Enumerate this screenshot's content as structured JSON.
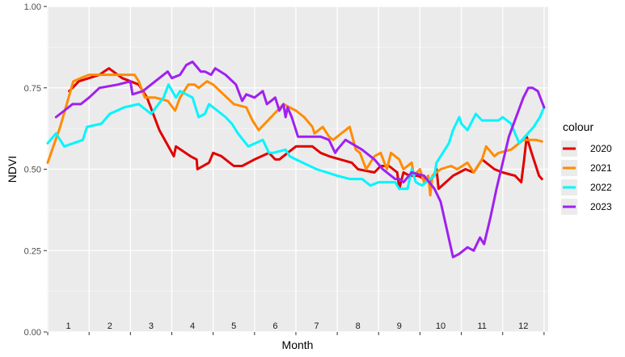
{
  "chart_data": {
    "type": "line",
    "title": "",
    "xlabel": "Month",
    "ylabel": "NDVI",
    "ylim": [
      0,
      1
    ],
    "yticks": [
      "0.00",
      "0.25",
      "0.50",
      "0.75",
      "1.00"
    ],
    "ytick_values": [
      0,
      0.25,
      0.5,
      0.75,
      1
    ],
    "month_labels": [
      "1",
      "2",
      "3",
      "4",
      "5",
      "6",
      "7",
      "8",
      "9",
      "10",
      "11",
      "12"
    ],
    "month_positions": [
      1.5,
      2.5,
      3.5,
      4.5,
      5.5,
      6.5,
      7.5,
      8.5,
      9.5,
      10.5,
      11.5,
      12.5
    ],
    "xlim": [
      0.98,
      13.1
    ],
    "grid": true,
    "legend_title": "colour",
    "legend_position": "right",
    "series": [
      {
        "name": "2020",
        "color": "#e00000",
        "points": [
          [
            1.52,
            0.74
          ],
          [
            1.6,
            0.75
          ],
          [
            1.75,
            0.77
          ],
          [
            2.0,
            0.78
          ],
          [
            2.25,
            0.79
          ],
          [
            2.48,
            0.81
          ],
          [
            2.8,
            0.78
          ],
          [
            3.2,
            0.76
          ],
          [
            3.4,
            0.72
          ],
          [
            3.7,
            0.62
          ],
          [
            4.05,
            0.54
          ],
          [
            4.1,
            0.57
          ],
          [
            4.45,
            0.54
          ],
          [
            4.6,
            0.53
          ],
          [
            4.62,
            0.5
          ],
          [
            4.9,
            0.52
          ],
          [
            5.0,
            0.55
          ],
          [
            5.2,
            0.54
          ],
          [
            5.5,
            0.51
          ],
          [
            5.7,
            0.51
          ],
          [
            6.0,
            0.53
          ],
          [
            6.35,
            0.55
          ],
          [
            6.5,
            0.53
          ],
          [
            6.6,
            0.53
          ],
          [
            6.8,
            0.55
          ],
          [
            7.0,
            0.57
          ],
          [
            7.4,
            0.57
          ],
          [
            7.5,
            0.56
          ],
          [
            7.6,
            0.55
          ],
          [
            7.8,
            0.54
          ],
          [
            8.35,
            0.52
          ],
          [
            8.5,
            0.5
          ],
          [
            8.9,
            0.49
          ],
          [
            9.05,
            0.51
          ],
          [
            9.25,
            0.51
          ],
          [
            9.45,
            0.49
          ],
          [
            9.5,
            0.44
          ],
          [
            9.6,
            0.49
          ],
          [
            9.75,
            0.48
          ],
          [
            9.95,
            0.48
          ],
          [
            10.25,
            0.46
          ],
          [
            10.4,
            0.5
          ],
          [
            10.45,
            0.44
          ],
          [
            10.8,
            0.48
          ],
          [
            11.1,
            0.5
          ],
          [
            11.3,
            0.49
          ],
          [
            11.5,
            0.53
          ],
          [
            11.8,
            0.5
          ],
          [
            12.0,
            0.49
          ],
          [
            12.3,
            0.48
          ],
          [
            12.45,
            0.46
          ],
          [
            12.52,
            0.53
          ],
          [
            12.58,
            0.6
          ],
          [
            12.7,
            0.55
          ],
          [
            12.88,
            0.48
          ],
          [
            12.95,
            0.47
          ]
        ]
      },
      {
        "name": "2021",
        "color": "#ff8c00",
        "points": [
          [
            1.0,
            0.52
          ],
          [
            1.3,
            0.63
          ],
          [
            1.62,
            0.77
          ],
          [
            1.8,
            0.78
          ],
          [
            2.0,
            0.79
          ],
          [
            2.5,
            0.79
          ],
          [
            3.1,
            0.79
          ],
          [
            3.2,
            0.77
          ],
          [
            3.35,
            0.72
          ],
          [
            3.6,
            0.72
          ],
          [
            3.9,
            0.71
          ],
          [
            4.08,
            0.68
          ],
          [
            4.2,
            0.72
          ],
          [
            4.4,
            0.76
          ],
          [
            4.55,
            0.76
          ],
          [
            4.65,
            0.75
          ],
          [
            4.85,
            0.77
          ],
          [
            5.0,
            0.76
          ],
          [
            5.25,
            0.73
          ],
          [
            5.5,
            0.7
          ],
          [
            5.8,
            0.69
          ],
          [
            5.95,
            0.65
          ],
          [
            6.1,
            0.62
          ],
          [
            6.4,
            0.66
          ],
          [
            6.7,
            0.7
          ],
          [
            6.85,
            0.69
          ],
          [
            7.0,
            0.68
          ],
          [
            7.2,
            0.66
          ],
          [
            7.4,
            0.63
          ],
          [
            7.45,
            0.61
          ],
          [
            7.65,
            0.63
          ],
          [
            7.8,
            0.6
          ],
          [
            7.9,
            0.59
          ],
          [
            8.1,
            0.61
          ],
          [
            8.3,
            0.63
          ],
          [
            8.45,
            0.56
          ],
          [
            8.55,
            0.55
          ],
          [
            8.7,
            0.5
          ],
          [
            8.9,
            0.54
          ],
          [
            9.05,
            0.55
          ],
          [
            9.2,
            0.5
          ],
          [
            9.3,
            0.55
          ],
          [
            9.5,
            0.53
          ],
          [
            9.6,
            0.5
          ],
          [
            9.8,
            0.52
          ],
          [
            9.85,
            0.48
          ],
          [
            10.0,
            0.5
          ],
          [
            10.1,
            0.46
          ],
          [
            10.2,
            0.48
          ],
          [
            10.25,
            0.42
          ],
          [
            10.3,
            0.48
          ],
          [
            10.5,
            0.5
          ],
          [
            10.75,
            0.51
          ],
          [
            10.9,
            0.5
          ],
          [
            11.15,
            0.52
          ],
          [
            11.3,
            0.49
          ],
          [
            11.5,
            0.53
          ],
          [
            11.6,
            0.57
          ],
          [
            11.8,
            0.54
          ],
          [
            11.9,
            0.55
          ],
          [
            12.2,
            0.56
          ],
          [
            12.5,
            0.59
          ],
          [
            12.6,
            0.59
          ],
          [
            12.8,
            0.59
          ],
          [
            12.95,
            0.585
          ]
        ]
      },
      {
        "name": "2022",
        "color": "#00f5ff",
        "points": [
          [
            1.0,
            0.58
          ],
          [
            1.2,
            0.61
          ],
          [
            1.4,
            0.57
          ],
          [
            1.85,
            0.59
          ],
          [
            1.95,
            0.63
          ],
          [
            2.3,
            0.64
          ],
          [
            2.5,
            0.67
          ],
          [
            2.85,
            0.69
          ],
          [
            3.2,
            0.7
          ],
          [
            3.5,
            0.67
          ],
          [
            3.8,
            0.72
          ],
          [
            3.92,
            0.76
          ],
          [
            4.1,
            0.72
          ],
          [
            4.2,
            0.74
          ],
          [
            4.5,
            0.72
          ],
          [
            4.65,
            0.66
          ],
          [
            4.8,
            0.67
          ],
          [
            4.9,
            0.7
          ],
          [
            5.3,
            0.66
          ],
          [
            5.45,
            0.64
          ],
          [
            5.6,
            0.61
          ],
          [
            5.85,
            0.57
          ],
          [
            6.2,
            0.59
          ],
          [
            6.35,
            0.55
          ],
          [
            6.45,
            0.55
          ],
          [
            6.75,
            0.56
          ],
          [
            6.85,
            0.54
          ],
          [
            7.0,
            0.53
          ],
          [
            7.5,
            0.5
          ],
          [
            8.0,
            0.48
          ],
          [
            8.3,
            0.47
          ],
          [
            8.6,
            0.47
          ],
          [
            8.8,
            0.45
          ],
          [
            9.0,
            0.46
          ],
          [
            9.4,
            0.46
          ],
          [
            9.5,
            0.44
          ],
          [
            9.7,
            0.44
          ],
          [
            9.8,
            0.5
          ],
          [
            9.9,
            0.46
          ],
          [
            10.05,
            0.45
          ],
          [
            10.15,
            0.46
          ],
          [
            10.35,
            0.48
          ],
          [
            10.4,
            0.52
          ],
          [
            10.7,
            0.58
          ],
          [
            10.8,
            0.62
          ],
          [
            10.95,
            0.66
          ],
          [
            11.0,
            0.64
          ],
          [
            11.15,
            0.62
          ],
          [
            11.35,
            0.67
          ],
          [
            11.5,
            0.65
          ],
          [
            11.9,
            0.65
          ],
          [
            12.0,
            0.66
          ],
          [
            12.2,
            0.64
          ],
          [
            12.4,
            0.58
          ],
          [
            12.75,
            0.63
          ],
          [
            12.9,
            0.66
          ],
          [
            13.0,
            0.69
          ]
        ]
      },
      {
        "name": "2023",
        "color": "#a020f0",
        "points": [
          [
            1.2,
            0.66
          ],
          [
            1.4,
            0.68
          ],
          [
            1.6,
            0.7
          ],
          [
            1.8,
            0.7
          ],
          [
            2.0,
            0.72
          ],
          [
            2.25,
            0.75
          ],
          [
            2.7,
            0.76
          ],
          [
            3.0,
            0.77
          ],
          [
            3.05,
            0.73
          ],
          [
            3.3,
            0.74
          ],
          [
            3.6,
            0.77
          ],
          [
            3.9,
            0.8
          ],
          [
            4.0,
            0.78
          ],
          [
            4.2,
            0.79
          ],
          [
            4.35,
            0.82
          ],
          [
            4.5,
            0.83
          ],
          [
            4.7,
            0.8
          ],
          [
            4.8,
            0.8
          ],
          [
            4.95,
            0.79
          ],
          [
            5.05,
            0.81
          ],
          [
            5.3,
            0.79
          ],
          [
            5.55,
            0.76
          ],
          [
            5.7,
            0.71
          ],
          [
            5.8,
            0.73
          ],
          [
            6.0,
            0.72
          ],
          [
            6.2,
            0.74
          ],
          [
            6.3,
            0.7
          ],
          [
            6.4,
            0.71
          ],
          [
            6.5,
            0.72
          ],
          [
            6.6,
            0.68
          ],
          [
            6.7,
            0.7
          ],
          [
            6.75,
            0.66
          ],
          [
            6.8,
            0.69
          ],
          [
            6.9,
            0.66
          ],
          [
            7.0,
            0.62
          ],
          [
            7.05,
            0.6
          ],
          [
            7.6,
            0.6
          ],
          [
            7.8,
            0.59
          ],
          [
            7.95,
            0.55
          ],
          [
            8.0,
            0.56
          ],
          [
            8.2,
            0.59
          ],
          [
            8.6,
            0.56
          ],
          [
            8.9,
            0.53
          ],
          [
            9.1,
            0.5
          ],
          [
            9.3,
            0.48
          ],
          [
            9.4,
            0.47
          ],
          [
            9.5,
            0.47
          ],
          [
            9.6,
            0.46
          ],
          [
            9.8,
            0.49
          ],
          [
            10.1,
            0.48
          ],
          [
            10.35,
            0.44
          ],
          [
            10.5,
            0.4
          ],
          [
            10.8,
            0.23
          ],
          [
            10.95,
            0.24
          ],
          [
            11.15,
            0.26
          ],
          [
            11.3,
            0.25
          ],
          [
            11.45,
            0.29
          ],
          [
            11.55,
            0.27
          ],
          [
            11.7,
            0.35
          ],
          [
            11.85,
            0.44
          ],
          [
            12.15,
            0.6
          ],
          [
            12.5,
            0.72
          ],
          [
            12.62,
            0.75
          ],
          [
            12.72,
            0.75
          ],
          [
            12.85,
            0.74
          ],
          [
            13.0,
            0.69
          ]
        ]
      }
    ]
  }
}
